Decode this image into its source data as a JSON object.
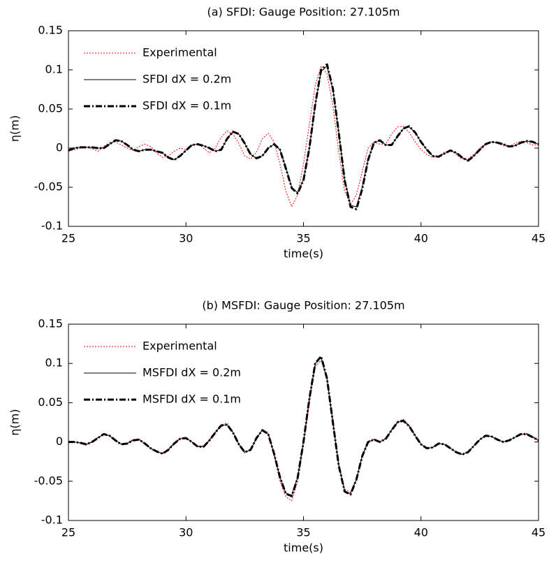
{
  "chart_data": [
    {
      "type": "line",
      "title": "(a) SFDI: Gauge Position: 27.105m",
      "xlabel": "time(s)",
      "ylabel": "η(m)",
      "xlim": [
        25,
        45
      ],
      "ylim": [
        -0.1,
        0.15
      ],
      "xticks": [
        25,
        30,
        35,
        40,
        45
      ],
      "yticks": [
        -0.1,
        -0.05,
        0,
        0.05,
        0.1,
        0.15
      ],
      "legend": "upper left",
      "x": [
        25,
        25.25,
        25.5,
        25.75,
        26,
        26.25,
        26.5,
        26.75,
        27,
        27.25,
        27.5,
        27.75,
        28,
        28.25,
        28.5,
        28.75,
        29,
        29.25,
        29.5,
        29.75,
        30,
        30.25,
        30.5,
        30.75,
        31,
        31.25,
        31.5,
        31.75,
        32,
        32.25,
        32.5,
        32.75,
        33,
        33.25,
        33.5,
        33.75,
        34,
        34.25,
        34.5,
        34.75,
        35,
        35.25,
        35.5,
        35.75,
        36,
        36.25,
        36.5,
        36.75,
        37,
        37.25,
        37.5,
        37.75,
        38,
        38.25,
        38.5,
        38.75,
        39,
        39.25,
        39.5,
        39.75,
        40,
        40.25,
        40.5,
        40.75,
        41,
        41.25,
        41.5,
        41.75,
        42,
        42.25,
        42.5,
        42.75,
        43,
        43.25,
        43.5,
        43.75,
        44,
        44.25,
        44.5,
        44.75,
        45
      ],
      "series": [
        {
          "name": "Experimental",
          "color": "#ff0000",
          "linestyle": "dotted",
          "linewidth": 1,
          "values": [
            -0.004,
            -0.002,
            0,
            0.002,
            -0.001,
            -0.004,
            0.002,
            0.007,
            0.008,
            0.004,
            0,
            -0.003,
            0.002,
            0.005,
            0.002,
            -0.006,
            -0.012,
            -0.01,
            -0.004,
            0,
            -0.002,
            0.003,
            0.006,
            0,
            -0.006,
            0,
            0.014,
            0.022,
            0.018,
            0.006,
            -0.01,
            -0.014,
            -0.005,
            0.012,
            0.019,
            0.008,
            -0.02,
            -0.055,
            -0.075,
            -0.06,
            -0.02,
            0.03,
            0.08,
            0.105,
            0.095,
            0.055,
            -0.005,
            -0.055,
            -0.072,
            -0.06,
            -0.03,
            0,
            0.008,
            0.005,
            0.005,
            0.018,
            0.027,
            0.028,
            0.02,
            0.008,
            -0.002,
            -0.008,
            -0.012,
            -0.01,
            -0.005,
            -0.003,
            -0.008,
            -0.014,
            -0.014,
            -0.008,
            0,
            0.006,
            0.008,
            0.006,
            0.003,
            0.002,
            0.006,
            0.009,
            0.007,
            0.004,
            0.004
          ]
        },
        {
          "name": "SFDI dX = 0.2m",
          "color": "#000000",
          "linestyle": "solid",
          "linewidth": 1,
          "values": [
            -0.003,
            0,
            0.001,
            0.001,
            0.001,
            0,
            0,
            0.005,
            0.01,
            0.009,
            0.004,
            -0.002,
            -0.004,
            -0.002,
            -0.002,
            -0.004,
            -0.006,
            -0.012,
            -0.015,
            -0.01,
            -0.003,
            0.004,
            0.005,
            0.003,
            0,
            -0.004,
            -0.002,
            0.012,
            0.021,
            0.018,
            0.006,
            -0.008,
            -0.013,
            -0.01,
            0,
            0.005,
            -0.002,
            -0.025,
            -0.05,
            -0.057,
            -0.04,
            0,
            0.055,
            0.098,
            0.105,
            0.075,
            0.02,
            -0.04,
            -0.073,
            -0.075,
            -0.05,
            -0.015,
            0.007,
            0.01,
            0.004,
            0.004,
            0.015,
            0.025,
            0.027,
            0.02,
            0.008,
            -0.002,
            -0.01,
            -0.011,
            -0.007,
            -0.003,
            -0.006,
            -0.012,
            -0.016,
            -0.01,
            -0.002,
            0.005,
            0.008,
            0.007,
            0.005,
            0.002,
            0.003,
            0.007,
            0.009,
            0.008,
            0.005
          ]
        },
        {
          "name": "SFDI dX = 0.1m",
          "color": "#000000",
          "linestyle": "dashdot",
          "linewidth": 3,
          "values": [
            -0.003,
            0,
            0.001,
            0.001,
            0.001,
            0,
            0,
            0.005,
            0.01,
            0.009,
            0.004,
            -0.002,
            -0.004,
            -0.002,
            -0.002,
            -0.004,
            -0.006,
            -0.012,
            -0.015,
            -0.01,
            -0.003,
            0.004,
            0.005,
            0.003,
            0,
            -0.004,
            -0.002,
            0.012,
            0.021,
            0.018,
            0.006,
            -0.008,
            -0.013,
            -0.01,
            0,
            0.005,
            -0.002,
            -0.026,
            -0.051,
            -0.058,
            -0.041,
            0,
            0.056,
            0.1,
            0.107,
            0.076,
            0.02,
            -0.041,
            -0.075,
            -0.078,
            -0.052,
            -0.015,
            0.007,
            0.01,
            0.004,
            0.004,
            0.015,
            0.025,
            0.028,
            0.02,
            0.008,
            -0.002,
            -0.01,
            -0.011,
            -0.007,
            -0.003,
            -0.006,
            -0.012,
            -0.016,
            -0.01,
            -0.002,
            0.005,
            0.008,
            0.007,
            0.005,
            0.002,
            0.003,
            0.007,
            0.009,
            0.008,
            0.005
          ]
        }
      ]
    },
    {
      "type": "line",
      "title": "(b) MSFDI: Gauge Position: 27.105m",
      "xlabel": "time(s)",
      "ylabel": "η(m)",
      "xlim": [
        25,
        45
      ],
      "ylim": [
        -0.1,
        0.15
      ],
      "xticks": [
        25,
        30,
        35,
        40,
        45
      ],
      "yticks": [
        -0.1,
        -0.05,
        0,
        0.05,
        0.1,
        0.15
      ],
      "legend": "upper left",
      "x": [
        25,
        25.25,
        25.5,
        25.75,
        26,
        26.25,
        26.5,
        26.75,
        27,
        27.25,
        27.5,
        27.75,
        28,
        28.25,
        28.5,
        28.75,
        29,
        29.25,
        29.5,
        29.75,
        30,
        30.25,
        30.5,
        30.75,
        31,
        31.25,
        31.5,
        31.75,
        32,
        32.25,
        32.5,
        32.75,
        33,
        33.25,
        33.5,
        33.75,
        34,
        34.25,
        34.5,
        34.75,
        35,
        35.25,
        35.5,
        35.75,
        36,
        36.25,
        36.5,
        36.75,
        37,
        37.25,
        37.5,
        37.75,
        38,
        38.25,
        38.5,
        38.75,
        39,
        39.25,
        39.5,
        39.75,
        40,
        40.25,
        40.5,
        40.75,
        41,
        41.25,
        41.5,
        41.75,
        42,
        42.25,
        42.5,
        42.75,
        43,
        43.25,
        43.5,
        43.75,
        44,
        44.25,
        44.5,
        44.75,
        45
      ],
      "series": [
        {
          "name": "Experimental",
          "color": "#ff0000",
          "linestyle": "dotted",
          "linewidth": 1,
          "values": [
            0.001,
            0,
            -0.002,
            -0.004,
            0,
            0.006,
            0.01,
            0.007,
            0.001,
            -0.003,
            -0.001,
            0.003,
            0.004,
            -0.002,
            -0.009,
            -0.013,
            -0.014,
            -0.009,
            -0.001,
            0.005,
            0.006,
            0,
            -0.005,
            -0.005,
            0.003,
            0.013,
            0.022,
            0.024,
            0.013,
            -0.002,
            -0.014,
            -0.011,
            0.004,
            0.016,
            0.012,
            -0.018,
            -0.05,
            -0.07,
            -0.075,
            -0.05,
            -0.003,
            0.05,
            0.096,
            0.104,
            0.082,
            0.028,
            -0.028,
            -0.06,
            -0.064,
            -0.047,
            -0.017,
            0.001,
            0.004,
            0.001,
            0.005,
            0.016,
            0.026,
            0.029,
            0.021,
            0.009,
            -0.002,
            -0.008,
            -0.007,
            -0.002,
            -0.003,
            -0.008,
            -0.013,
            -0.015,
            -0.012,
            -0.005,
            0.003,
            0.008,
            0.007,
            0.003,
            0,
            0.002,
            0.006,
            0.01,
            0.011,
            0.007,
            0.003
          ]
        },
        {
          "name": "MSFDI dX = 0.2m",
          "color": "#000000",
          "linestyle": "solid",
          "linewidth": 1,
          "values": [
            0,
            0,
            -0.001,
            -0.003,
            0,
            0.005,
            0.01,
            0.008,
            0.002,
            -0.003,
            -0.002,
            0.002,
            0.003,
            -0.002,
            -0.008,
            -0.012,
            -0.015,
            -0.01,
            -0.002,
            0.004,
            0.005,
            0,
            -0.006,
            -0.006,
            0.002,
            0.012,
            0.021,
            0.022,
            0.012,
            -0.003,
            -0.013,
            -0.01,
            0.005,
            0.015,
            0.01,
            -0.015,
            -0.045,
            -0.065,
            -0.068,
            -0.045,
            0,
            0.055,
            0.1,
            0.108,
            0.08,
            0.025,
            -0.03,
            -0.062,
            -0.066,
            -0.048,
            -0.018,
            0,
            0.003,
            0,
            0.004,
            0.015,
            0.025,
            0.027,
            0.02,
            0.008,
            -0.003,
            -0.008,
            -0.007,
            -0.002,
            -0.003,
            -0.008,
            -0.013,
            -0.016,
            -0.013,
            -0.005,
            0.003,
            0.008,
            0.007,
            0.003,
            0,
            0.002,
            0.006,
            0.01,
            0.01,
            0.006,
            0.002
          ]
        },
        {
          "name": "MSFDI dX = 0.1m",
          "color": "#000000",
          "linestyle": "dashdot",
          "linewidth": 3,
          "values": [
            0,
            0,
            -0.001,
            -0.003,
            0,
            0.005,
            0.01,
            0.008,
            0.002,
            -0.003,
            -0.002,
            0.002,
            0.003,
            -0.002,
            -0.008,
            -0.012,
            -0.015,
            -0.01,
            -0.002,
            0.004,
            0.005,
            0,
            -0.006,
            -0.006,
            0.002,
            0.012,
            0.021,
            0.022,
            0.012,
            -0.003,
            -0.013,
            -0.01,
            0.005,
            0.015,
            0.01,
            -0.015,
            -0.045,
            -0.066,
            -0.069,
            -0.046,
            0,
            0.055,
            0.1,
            0.109,
            0.081,
            0.025,
            -0.03,
            -0.063,
            -0.067,
            -0.048,
            -0.018,
            0,
            0.003,
            0,
            0.004,
            0.015,
            0.025,
            0.027,
            0.02,
            0.008,
            -0.003,
            -0.008,
            -0.007,
            -0.002,
            -0.003,
            -0.008,
            -0.013,
            -0.016,
            -0.013,
            -0.005,
            0.003,
            0.008,
            0.007,
            0.003,
            0,
            0.002,
            0.006,
            0.01,
            0.01,
            0.006,
            0.002
          ]
        }
      ]
    }
  ]
}
